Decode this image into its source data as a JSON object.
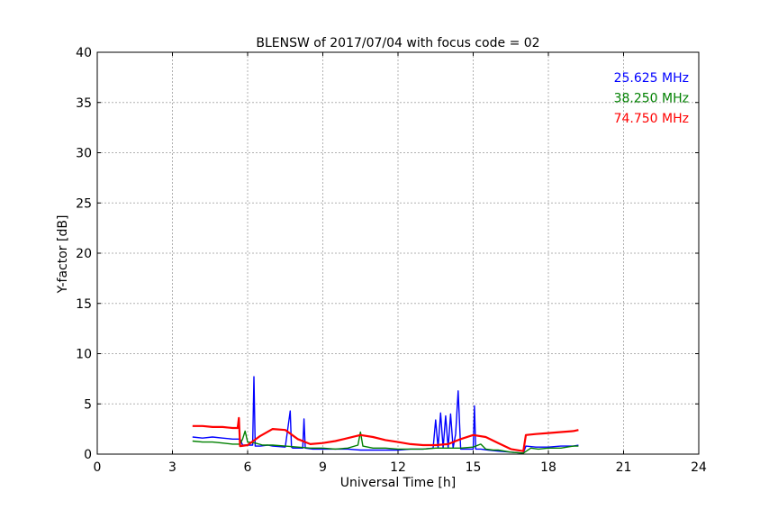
{
  "chart_data": {
    "type": "line",
    "title": "BLENSW of 2017/07/04 with focus code = 02",
    "xlabel": "Universal Time [h]",
    "ylabel": "Y-factor [dB]",
    "xlim": [
      0,
      24
    ],
    "ylim": [
      0,
      40
    ],
    "xticks": [
      0,
      3,
      6,
      9,
      12,
      15,
      18,
      21,
      24
    ],
    "yticks": [
      0,
      5,
      10,
      15,
      20,
      25,
      30,
      35,
      40
    ],
    "grid": true,
    "legend": "top-right",
    "series": [
      {
        "name": "25.625 MHz",
        "color": "#0000ff",
        "x": [
          3.8,
          4.2,
          4.6,
          5.0,
          5.4,
          5.7,
          5.8,
          6.0,
          6.2,
          6.25,
          6.3,
          6.35,
          6.5,
          6.8,
          7.0,
          7.5,
          7.7,
          7.75,
          7.8,
          8.0,
          8.2,
          8.25,
          8.3,
          8.6,
          9.0,
          9.5,
          10.0,
          10.5,
          11.0,
          11.5,
          12.0,
          12.5,
          13.0,
          13.4,
          13.5,
          13.6,
          13.7,
          13.8,
          13.9,
          14.0,
          14.1,
          14.2,
          14.3,
          14.4,
          14.5,
          14.6,
          14.8,
          15.0,
          15.05,
          15.1,
          15.3,
          15.6,
          16.0,
          16.5,
          17.0,
          17.1,
          17.5,
          18.0,
          18.5,
          19.0,
          19.2
        ],
        "y": [
          1.7,
          1.6,
          1.7,
          1.6,
          1.5,
          1.5,
          0.9,
          0.9,
          0.9,
          7.7,
          0.8,
          0.8,
          0.8,
          0.9,
          0.8,
          0.7,
          4.3,
          0.7,
          0.6,
          0.6,
          0.6,
          3.5,
          0.6,
          0.5,
          0.5,
          0.5,
          0.5,
          0.4,
          0.4,
          0.4,
          0.4,
          0.5,
          0.5,
          0.6,
          3.4,
          0.6,
          4.1,
          0.6,
          3.8,
          0.6,
          4.0,
          0.6,
          2.0,
          6.3,
          0.5,
          0.5,
          0.5,
          0.5,
          4.8,
          0.5,
          0.5,
          0.4,
          0.3,
          0.2,
          0.1,
          0.8,
          0.7,
          0.7,
          0.8,
          0.8,
          0.9
        ]
      },
      {
        "name": "38.250 MHz",
        "color": "#008000",
        "x": [
          3.8,
          4.2,
          4.6,
          5.0,
          5.4,
          5.7,
          5.8,
          5.9,
          6.0,
          6.3,
          6.6,
          7.0,
          7.5,
          8.0,
          8.5,
          9.0,
          9.5,
          10.0,
          10.4,
          10.5,
          10.6,
          11.0,
          11.5,
          12.0,
          12.5,
          13.0,
          13.5,
          14.0,
          14.5,
          15.0,
          15.3,
          15.5,
          15.8,
          16.0,
          16.5,
          17.0,
          17.3,
          17.6,
          18.0,
          18.5,
          19.0,
          19.2
        ],
        "y": [
          1.3,
          1.2,
          1.2,
          1.1,
          1.0,
          1.0,
          1.5,
          2.3,
          1.2,
          1.1,
          0.9,
          0.9,
          0.8,
          0.7,
          0.6,
          0.6,
          0.5,
          0.6,
          0.9,
          2.2,
          0.8,
          0.6,
          0.6,
          0.5,
          0.5,
          0.5,
          0.6,
          0.6,
          0.6,
          0.7,
          1.0,
          0.5,
          0.4,
          0.4,
          0.2,
          0.1,
          0.6,
          0.5,
          0.6,
          0.6,
          0.8,
          0.8
        ]
      },
      {
        "name": "74.750 MHz",
        "color": "#ff0000",
        "x": [
          3.8,
          4.2,
          4.6,
          5.0,
          5.4,
          5.6,
          5.65,
          5.7,
          6.0,
          6.5,
          7.0,
          7.5,
          8.0,
          8.5,
          9.0,
          9.5,
          10.0,
          10.5,
          11.0,
          11.5,
          12.0,
          12.5,
          13.0,
          13.5,
          14.0,
          14.5,
          15.0,
          15.5,
          16.0,
          16.5,
          17.0,
          17.1,
          17.5,
          18.0,
          18.5,
          19.0,
          19.2
        ],
        "y": [
          2.8,
          2.8,
          2.7,
          2.7,
          2.6,
          2.6,
          3.6,
          0.8,
          0.9,
          1.8,
          2.5,
          2.4,
          1.5,
          1.0,
          1.1,
          1.3,
          1.6,
          1.9,
          1.7,
          1.4,
          1.2,
          1.0,
          0.9,
          0.9,
          1.0,
          1.5,
          1.9,
          1.7,
          1.1,
          0.5,
          0.3,
          1.9,
          2.0,
          2.1,
          2.2,
          2.3,
          2.4
        ]
      }
    ]
  }
}
